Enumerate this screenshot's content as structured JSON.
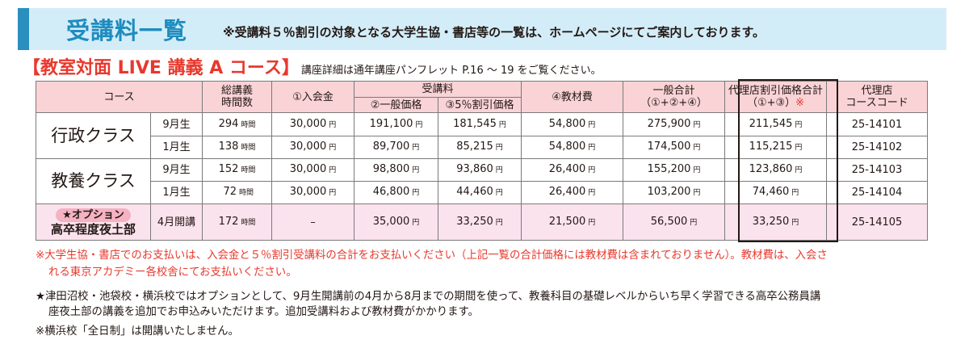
{
  "banner": {
    "title": "受講料一覧",
    "note": "※受講料５％割引の対象となる大学生協・書店等の一覧は、ホームページにてご案内しております。"
  },
  "course": {
    "title": "【教室対面 LIVE 講義 A コース】",
    "detail": "講座詳細は通年講座パンフレット P.16 〜 19 をご覧ください。"
  },
  "table": {
    "headers": {
      "course": "コース",
      "hours": [
        "総講義",
        "時間数"
      ],
      "entry": "①入会金",
      "tuition": "受講料",
      "general": "②一般価格",
      "discount": "③5％割引価格",
      "materials": "④教材費",
      "total": [
        "一般合計",
        "（①+②+④）"
      ],
      "agency_total": "代理店割引価格合計",
      "agency_total_formula": "（①+③）",
      "agency_total_mark": "※",
      "code": [
        "代理店",
        "コースコード"
      ]
    },
    "unit_hours": "時間",
    "unit_yen": "円",
    "rows": [
      {
        "course": "行政クラス",
        "term": "9月生",
        "hours": "294",
        "entry": "30,000",
        "general": "191,100",
        "discount": "181,545",
        "materials": "54,800",
        "total": "275,900",
        "agency": "211,545",
        "code": "25-14101"
      },
      {
        "course": "行政クラス",
        "term": "1月生",
        "hours": "138",
        "entry": "30,000",
        "general": "89,700",
        "discount": "85,215",
        "materials": "54,800",
        "total": "174,500",
        "agency": "115,215",
        "code": "25-14102"
      },
      {
        "course": "教養クラス",
        "term": "9月生",
        "hours": "152",
        "entry": "30,000",
        "general": "98,800",
        "discount": "93,860",
        "materials": "26,400",
        "total": "155,200",
        "agency": "123,860",
        "code": "25-14103"
      },
      {
        "course": "教養クラス",
        "term": "1月生",
        "hours": "72",
        "entry": "30,000",
        "general": "46,800",
        "discount": "44,460",
        "materials": "26,400",
        "total": "103,200",
        "agency": "74,460",
        "code": "25-14104"
      }
    ],
    "option_row": {
      "badge": "★オプション",
      "name": "高卒程度夜土部",
      "term": "4月開講",
      "hours": "172",
      "entry": "–",
      "general": "35,000",
      "discount": "33,250",
      "materials": "21,500",
      "total": "56,500",
      "agency": "33,250",
      "code": "25-14105"
    }
  },
  "footnotes": {
    "payment_line1": "※大学生協・書店でのお支払いは、入会金と５％割引受講料の合計をお支払いください（上記一覧の合計価格には教材費は含まれておりません）。教材費は、入会さ",
    "payment_line2": "れる東京アカデミー各校舎にてお支払いください。",
    "option_line1": "★津田沼校・池袋校・横浜校ではオプションとして、9月生開講前の4月から8月までの期間を使って、教養科目の基礎レベルからいち早く学習できる高卒公務員講",
    "option_line2": "座夜土部の講義を追加でお申込みいただけます。追加受講料および教材費がかかります。",
    "yokohama": "※横浜校「全日制」は開講いたしません。"
  },
  "colors": {
    "accent_blue": "#1e8cbf",
    "banner_bg": "#d3edf8",
    "accent_red": "#e8382d",
    "header_pink": "#f9d3d6",
    "option_pink": "#fbe3ee"
  }
}
